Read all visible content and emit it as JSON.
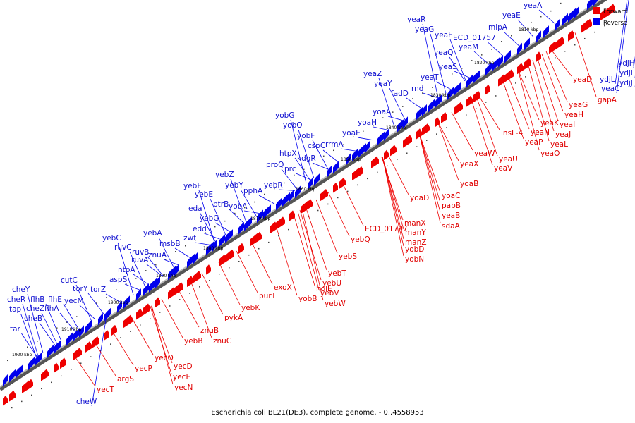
{
  "title": "Escherichia coli BL21(DE3), complete genome. - 0..4558953",
  "legend": [
    {
      "label": "Forward",
      "color": "#ee0000"
    },
    {
      "label": "Reverse",
      "color": "#0000ee"
    }
  ],
  "colors": {
    "forward": "#ee0000",
    "reverse": "#0000ee",
    "backbone": "#444444"
  },
  "kbp_marks": [
    "1810 kbp",
    "1820 kbp",
    "1830 kbp",
    "1840 kbp",
    "1850 kbp",
    "1860 kbp",
    "1870 kbp",
    "1880 kbp",
    "1890 kbp",
    "1900 kbp",
    "1910 kbp",
    "1920 kbp"
  ],
  "reverse_labels": [
    "yeaA",
    "yeaE",
    "yeaR",
    "yeaG",
    "yeaF",
    "ECD_01757",
    "mipA",
    "yeaM",
    "yeaQ",
    "yeaS",
    "yeaT",
    "yeaZ",
    "yeaY",
    "fadD",
    "rnd",
    "yoaA",
    "yoaH",
    "yoaE",
    "yobG",
    "yobO",
    "yobF",
    "cspC",
    "rrmA",
    "htpX",
    "kdgR",
    "proQ",
    "prc",
    "yebR",
    "yebZ",
    "yebF",
    "yebY",
    "pphA",
    "yebE",
    "ptrB",
    "yobA",
    "eda",
    "yebG",
    "edd",
    "zwf",
    "yebA",
    "msbB",
    "yebC",
    "ruvC",
    "ruvB",
    "ruvA",
    "znuA",
    "ntpA",
    "aspS",
    "cutC",
    "torY",
    "torZ",
    "cheY",
    "flhB",
    "flhE",
    "cheR",
    "tap",
    "cheZ",
    "flhA",
    "yecM",
    "cheB",
    "tar",
    "cheW",
    "ydjH",
    "ydjI",
    "ydjJ",
    "ydjL",
    "yeaC"
  ],
  "forward_labels": [
    "yeaD",
    "gapA",
    "yeaG",
    "yeaH",
    "yeaK",
    "yeaI",
    "insL-4",
    "yeaN",
    "yeaJ",
    "yeaP",
    "yeaL",
    "yeaU",
    "yeaO",
    "yeaW",
    "yeaV",
    "yeaX",
    "yoaB",
    "yoaD",
    "yoaC",
    "pabB",
    "yeaB",
    "sdaA",
    "manX",
    "ECD_01797",
    "manY",
    "manZ",
    "yobD",
    "yebQ",
    "yobN",
    "yebS",
    "yebT",
    "yebU",
    "yebV",
    "yebW",
    "holE",
    "exoX",
    "yobB",
    "purT",
    "yebK",
    "pykA",
    "znuB",
    "znuC",
    "yebB",
    "yecD",
    "yecO",
    "yecE",
    "yecP",
    "yecN",
    "argS",
    "yecT"
  ]
}
